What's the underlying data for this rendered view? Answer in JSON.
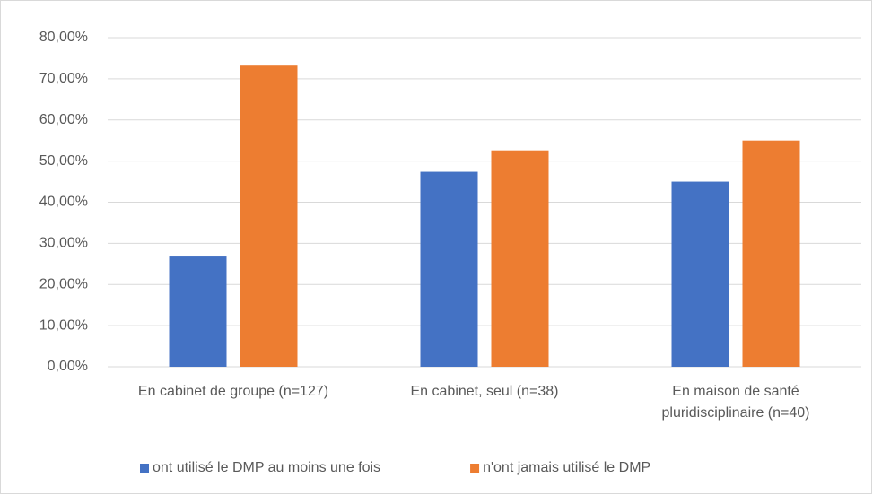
{
  "chart_data": {
    "type": "bar",
    "categories": [
      "En cabinet de groupe (n=127)",
      "En cabinet, seul (n=38)",
      "En maison de santé pluridisciplinaire (n=40)"
    ],
    "series": [
      {
        "name": "ont utilisé le DMP au moins une fois",
        "color": "#4472c4",
        "values": [
          26.8,
          47.4,
          45.0
        ]
      },
      {
        "name": "n'ont jamais utilisé le DMP",
        "color": "#ed7d31",
        "values": [
          73.2,
          52.6,
          55.0
        ]
      }
    ],
    "ylim": [
      0,
      80
    ],
    "yticks": [
      {
        "value": 0,
        "label": "0,00%"
      },
      {
        "value": 10,
        "label": "10,00%"
      },
      {
        "value": 20,
        "label": "20,00%"
      },
      {
        "value": 30,
        "label": "30,00%"
      },
      {
        "value": 40,
        "label": "40,00%"
      },
      {
        "value": 50,
        "label": "50,00%"
      },
      {
        "value": 60,
        "label": "60,00%"
      },
      {
        "value": 70,
        "label": "70,00%"
      },
      {
        "value": 80,
        "label": "80,00%"
      }
    ],
    "grid": true,
    "legend": "bottom"
  }
}
